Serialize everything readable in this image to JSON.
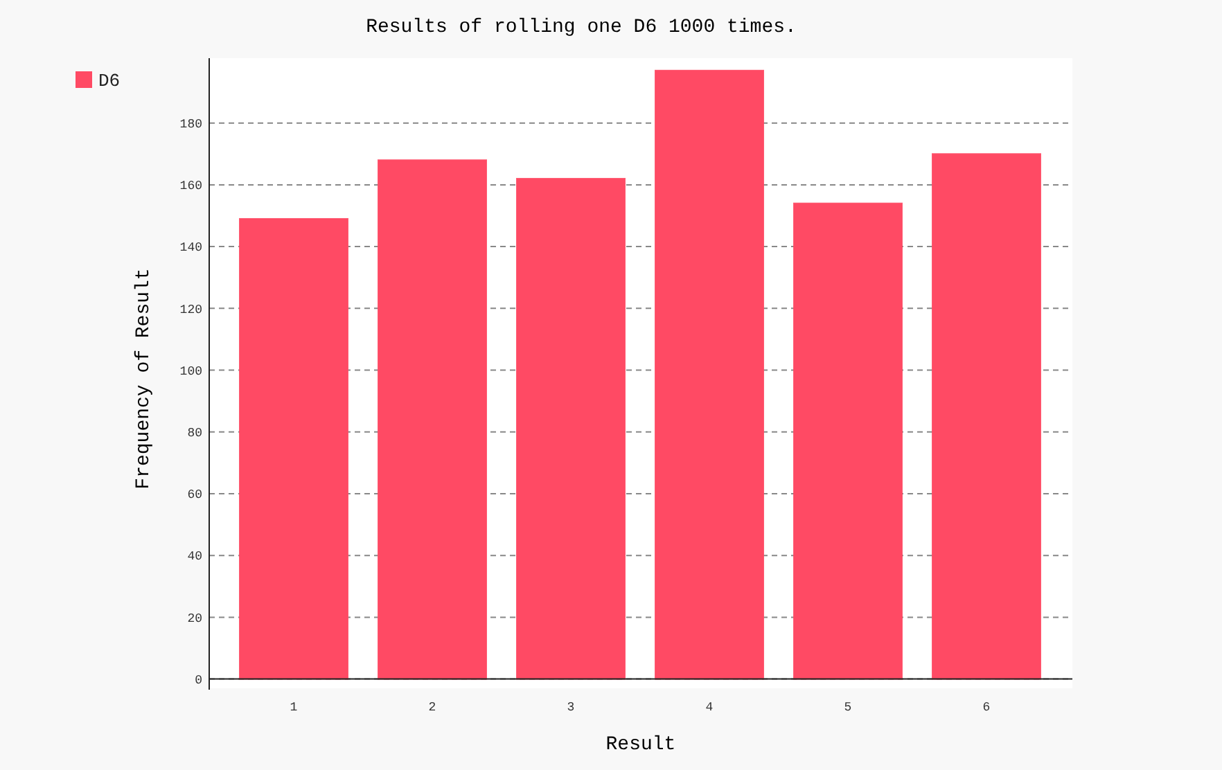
{
  "chart_data": {
    "type": "bar",
    "title": "Results of rolling one D6 1000 times.",
    "xlabel": "Result",
    "ylabel": "Frequency of Result",
    "categories": [
      "1",
      "2",
      "3",
      "4",
      "5",
      "6"
    ],
    "series": [
      {
        "name": "D6",
        "color": "#ff4a64",
        "values": [
          149,
          168,
          162,
          197,
          154,
          170
        ]
      }
    ],
    "ylim": [
      -3,
      201
    ],
    "yticks": [
      0,
      20,
      40,
      60,
      80,
      100,
      120,
      140,
      160,
      180
    ],
    "grid": "y",
    "legend": "top left"
  }
}
